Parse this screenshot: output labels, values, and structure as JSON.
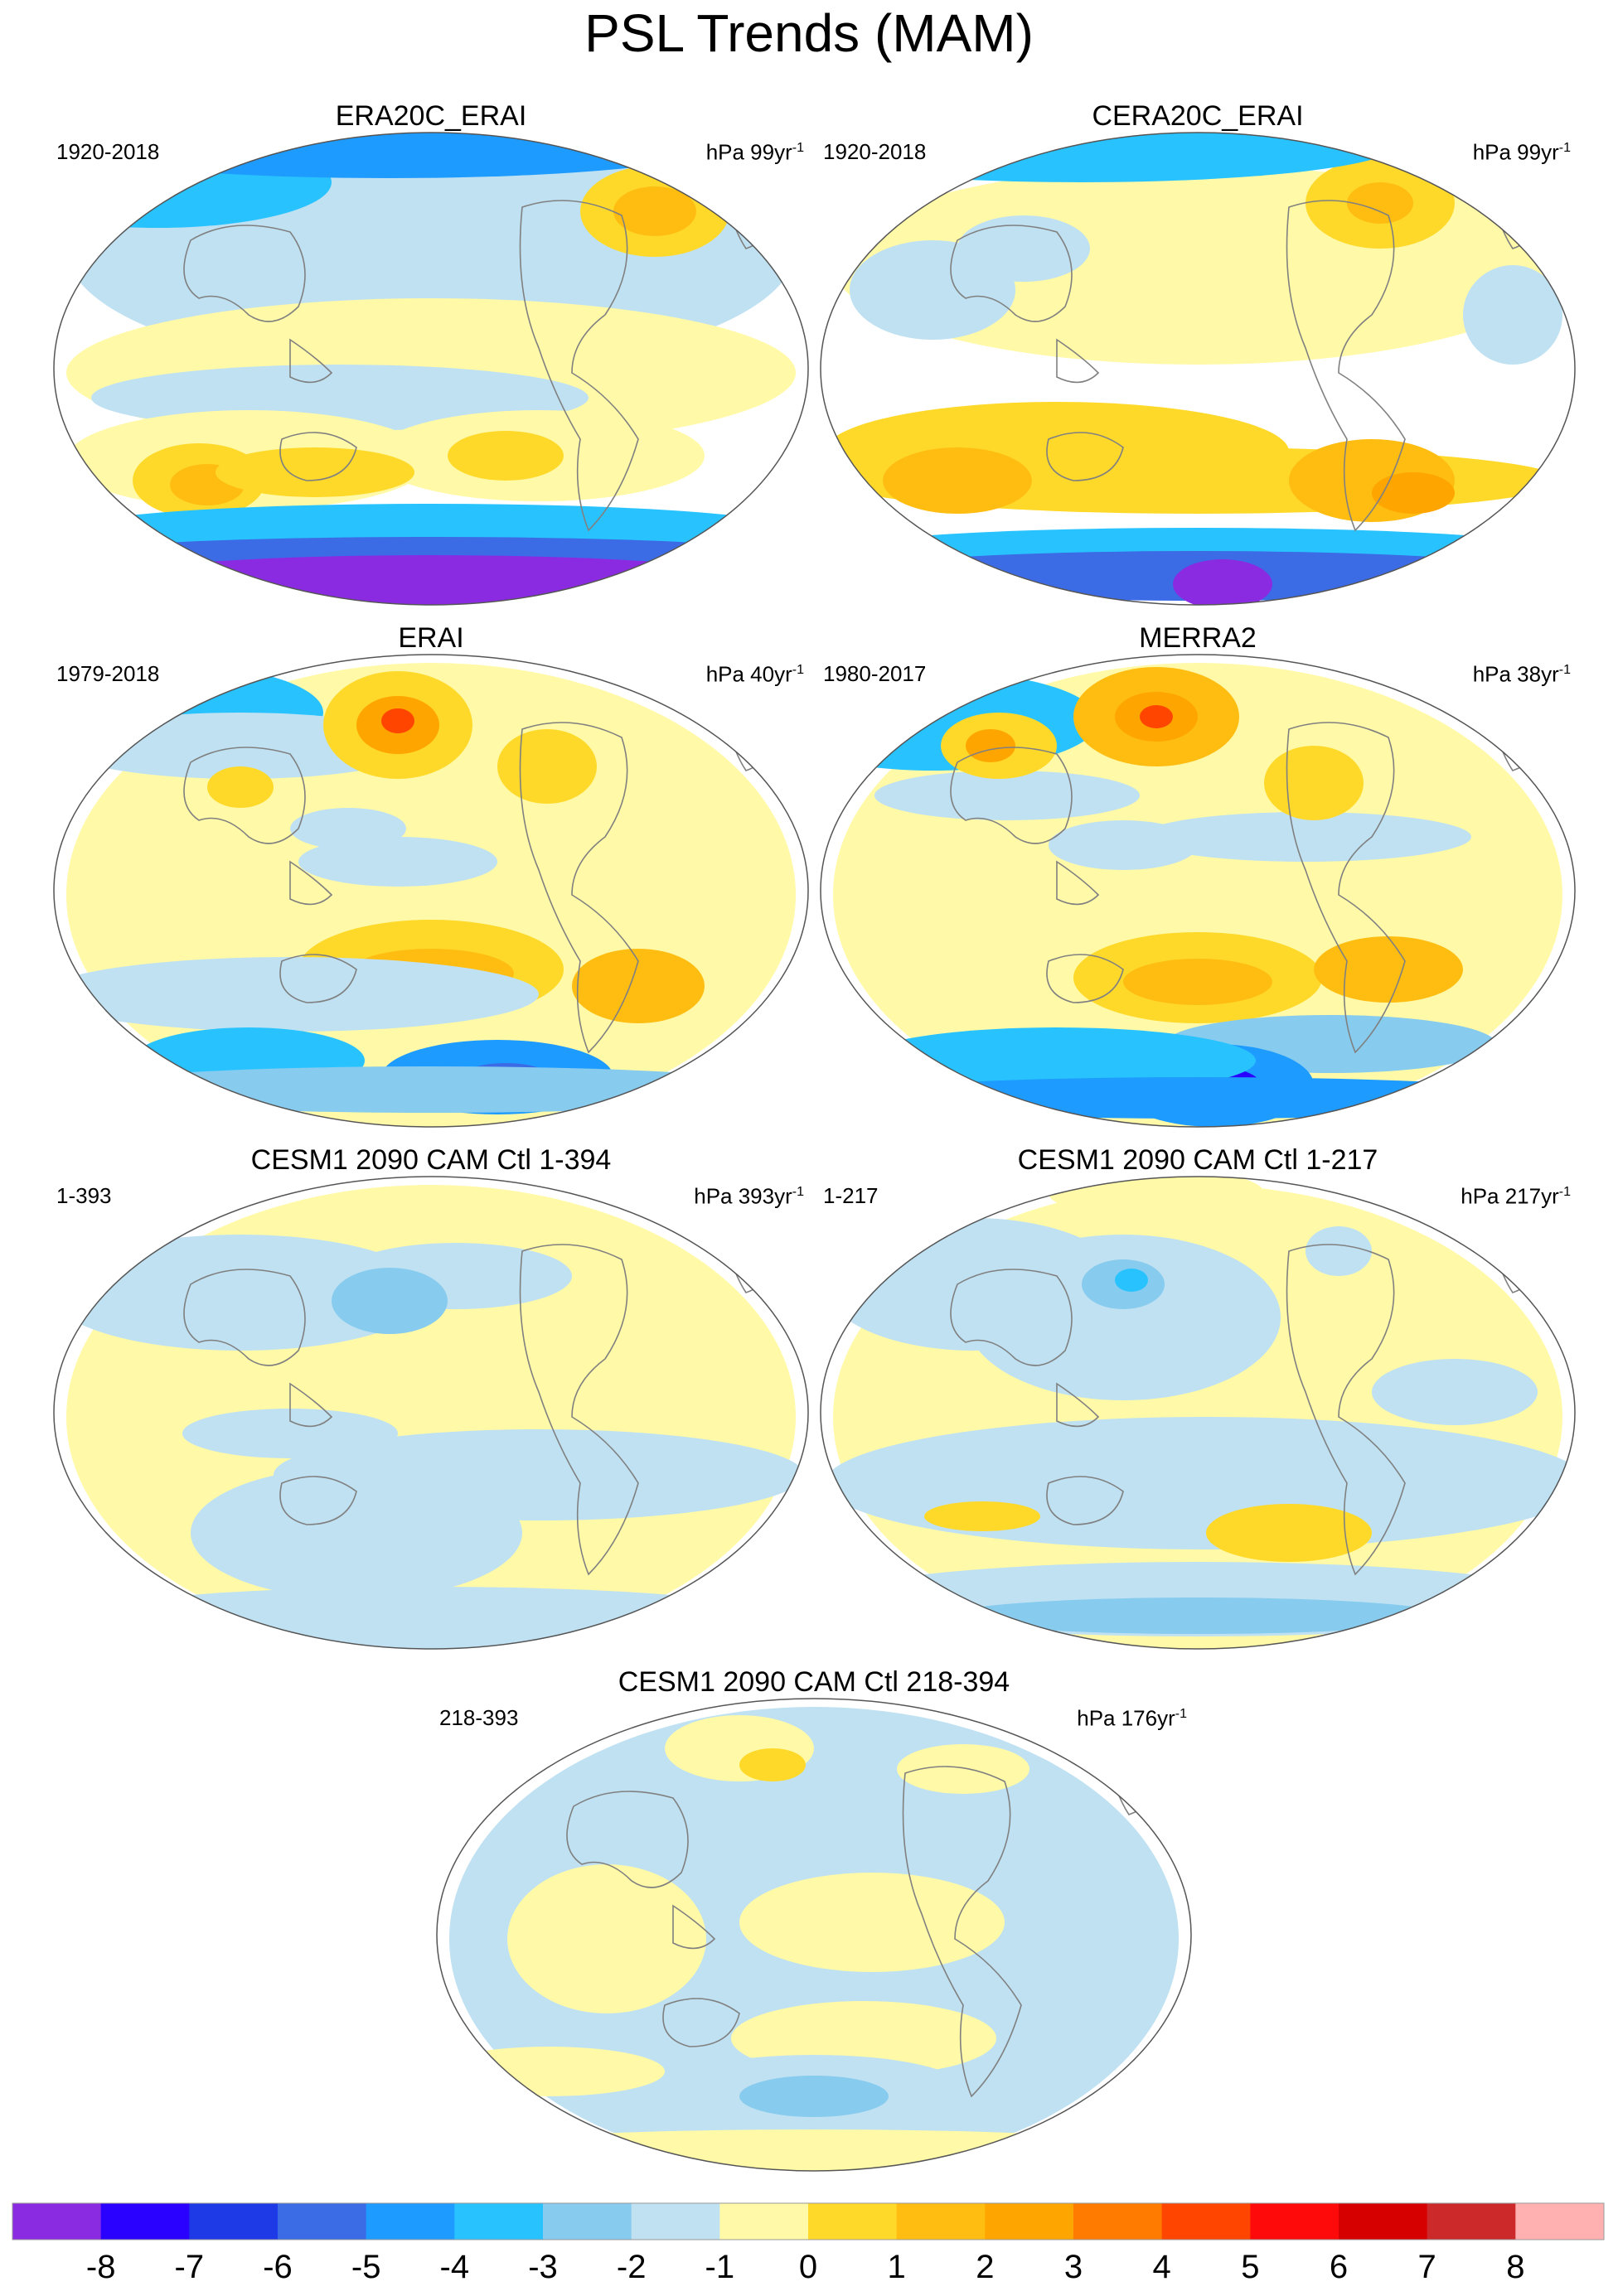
{
  "title": "PSL Trends (MAM)",
  "panels": [
    {
      "title": "ERA20C_ERAI",
      "period": "1920-2018",
      "units": "hPa 99yr",
      "units_exp": "-1"
    },
    {
      "title": "CERA20C_ERAI",
      "period": "1920-2018",
      "units": "hPa 99yr",
      "units_exp": "-1"
    },
    {
      "title": "ERAI",
      "period": "1979-2018",
      "units": "hPa 40yr",
      "units_exp": "-1"
    },
    {
      "title": "MERRA2",
      "period": "1980-2017",
      "units": "hPa 38yr",
      "units_exp": "-1"
    },
    {
      "title": "CESM1 2090 CAM Ctl 1-394",
      "period": "1-393",
      "units": "hPa 393yr",
      "units_exp": "-1"
    },
    {
      "title": "CESM1 2090 CAM Ctl 1-217",
      "period": "1-217",
      "units": "hPa 217yr",
      "units_exp": "-1"
    },
    {
      "title": "CESM1 2090 CAM Ctl 218-394",
      "period": "218-393",
      "units": "hPa 176yr",
      "units_exp": "-1"
    }
  ],
  "colorbar": {
    "labels": [
      "-8",
      "-7",
      "-6",
      "-5",
      "-4",
      "-3",
      "-2",
      "-1",
      "0",
      "1",
      "2",
      "3",
      "4",
      "5",
      "6",
      "7",
      "8"
    ],
    "colors": [
      "#8a2be2",
      "#2a00ff",
      "#1e3ae6",
      "#3c6be6",
      "#1e9bff",
      "#28c3ff",
      "#87cbee",
      "#bfe1f2",
      "#fff9a8",
      "#ffd92a",
      "#ffbd12",
      "#ffa500",
      "#ff7b00",
      "#ff4500",
      "#ff0a0a",
      "#d60000",
      "#cc2a2a",
      "#ffb1b1"
    ]
  },
  "colors": {
    "ocean_land_neutral_pos": "#fff9a8",
    "neutral_neg": "#bfe1f2",
    "coastline": "#808080"
  }
}
